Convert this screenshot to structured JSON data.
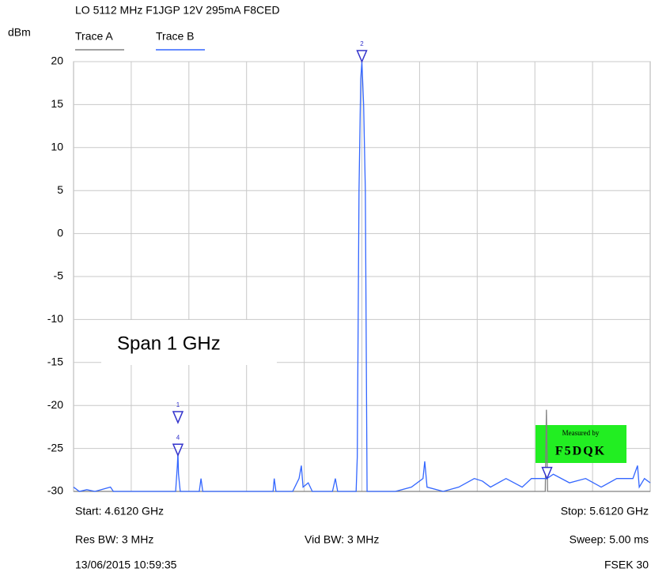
{
  "chart_data": {
    "type": "line",
    "title": "LO 5112 MHz F1JGP 12V 295mA F8CED",
    "y_label": "dBm",
    "xlim": [
      4.612,
      5.612
    ],
    "x_divisions": 10,
    "ylim": [
      -30,
      20
    ],
    "yticks": [
      20,
      15,
      10,
      5,
      0,
      -5,
      -10,
      -15,
      -20,
      -25,
      -30
    ],
    "grid": true,
    "series": [
      {
        "name": "Trace A",
        "color": "#808080",
        "x": [
          4.612,
          5.43,
          5.432,
          5.434,
          5.612
        ],
        "values": [
          -30,
          -30,
          -20.5,
          -30,
          -30
        ]
      },
      {
        "name": "Trace B",
        "color": "#3366ff",
        "x": [
          4.612,
          4.622,
          4.635,
          4.649,
          4.676,
          4.681,
          4.704,
          4.731,
          4.759,
          4.789,
          4.792,
          4.793,
          4.794,
          4.797,
          4.83,
          4.833,
          4.836,
          4.896,
          4.958,
          4.96,
          4.963,
          4.992,
          5.003,
          5.007,
          5.01,
          5.019,
          5.026,
          5.061,
          5.066,
          5.07,
          5.102,
          5.104,
          5.107,
          5.11,
          5.112,
          5.115,
          5.118,
          5.121,
          5.17,
          5.198,
          5.218,
          5.221,
          5.225,
          5.253,
          5.28,
          5.307,
          5.321,
          5.335,
          5.362,
          5.39,
          5.406,
          5.433,
          5.444,
          5.472,
          5.5,
          5.527,
          5.554,
          5.582,
          5.59,
          5.593,
          5.602,
          5.612
        ],
        "values": [
          -29.5,
          -30,
          -29.8,
          -30,
          -29.5,
          -30,
          -30,
          -30,
          -30,
          -30,
          -27,
          -25.5,
          -28,
          -30,
          -30,
          -28.5,
          -30,
          -30,
          -30,
          -28.5,
          -30,
          -30,
          -28.5,
          -27,
          -29.5,
          -29,
          -30,
          -30,
          -28.5,
          -30,
          -30,
          -26,
          5,
          18,
          20,
          15,
          5,
          -30,
          -30,
          -29.5,
          -28.5,
          -26.5,
          -29.5,
          -30,
          -29.5,
          -28.5,
          -28.8,
          -29.5,
          -28.5,
          -29.5,
          -28.5,
          -28.5,
          -28,
          -29,
          -28.5,
          -29.5,
          -28.5,
          -28.5,
          -27,
          -29.5,
          -28.5,
          -29
        ]
      }
    ],
    "markers": [
      {
        "label": "1",
        "x": 4.793,
        "value": -22
      },
      {
        "label": "4",
        "x": 4.793,
        "value": -25.8
      },
      {
        "label": "2",
        "x": 5.112,
        "value": 20
      },
      {
        "x": 5.433,
        "value": -28.5
      }
    ],
    "annotations": {
      "span": "Span 1 GHz",
      "measured_by": "Measured by",
      "callsign": "F5DQK"
    },
    "footer": {
      "start": "Start: 4.6120 GHz",
      "stop": "Stop: 5.6120 GHz",
      "res_bw": "Res BW: 3 MHz",
      "vid_bw": "Vid BW: 3 MHz",
      "sweep": "Sweep: 5.00 ms",
      "date": "13/06/2015 10:59:35",
      "model": "FSEK 30"
    }
  }
}
